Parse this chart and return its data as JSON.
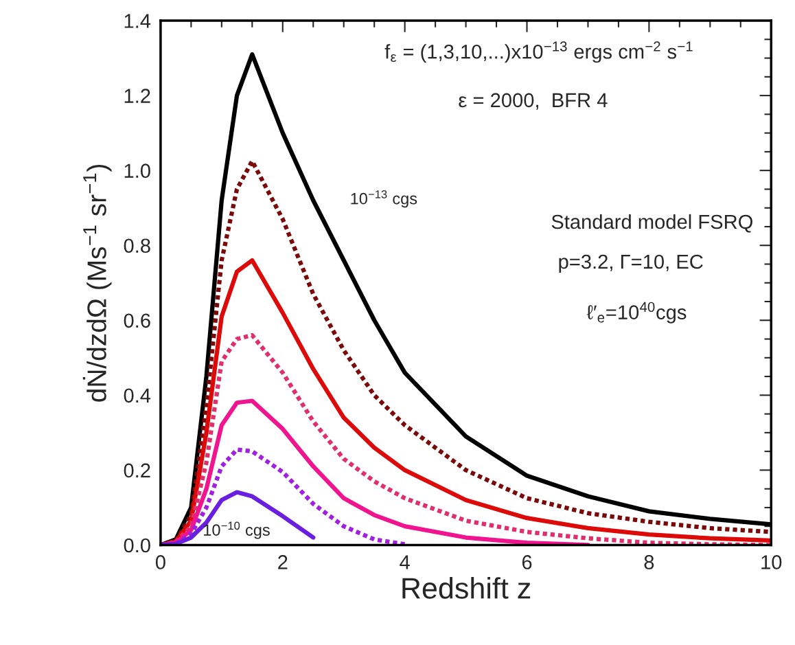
{
  "chart_data": {
    "type": "line",
    "xlabel": "Redshift z",
    "ylabel": "dṄ/dzdΩ (Ms$^{−1}$ sr$^{−1}$)",
    "x": [
      0,
      0.25,
      0.5,
      0.75,
      1,
      1.25,
      1.5,
      2,
      2.5,
      3,
      3.5,
      4,
      5,
      6,
      7,
      8,
      9,
      10
    ],
    "series": [
      {
        "color": "#000000",
        "line_style": "solid",
        "values": [
          0,
          0.015,
          0.1,
          0.45,
          0.92,
          1.2,
          1.31,
          1.1,
          0.92,
          0.76,
          0.6,
          0.46,
          0.29,
          0.185,
          0.13,
          0.09,
          0.07,
          0.055
        ]
      },
      {
        "color": "#7a0a0a",
        "line_style": "dotted",
        "values": [
          0,
          0.012,
          0.08,
          0.37,
          0.76,
          0.95,
          1.025,
          0.87,
          0.67,
          0.52,
          0.4,
          0.32,
          0.2,
          0.125,
          0.085,
          0.062,
          0.045,
          0.035
        ]
      },
      {
        "color": "#dd0a0a",
        "line_style": "solid",
        "values": [
          0,
          0.01,
          0.065,
          0.3,
          0.61,
          0.73,
          0.76,
          0.62,
          0.47,
          0.34,
          0.26,
          0.2,
          0.12,
          0.072,
          0.045,
          0.028,
          0.018,
          0.012
        ]
      },
      {
        "color": "#e0306a",
        "line_style": "dotted",
        "values": [
          0,
          0.008,
          0.05,
          0.22,
          0.49,
          0.55,
          0.56,
          0.46,
          0.33,
          0.23,
          0.17,
          0.125,
          0.065,
          0.035,
          0.018,
          0.006,
          0.002,
          0
        ]
      },
      {
        "color": "#f0158f",
        "line_style": "solid",
        "values": [
          0,
          0.006,
          0.04,
          0.15,
          0.32,
          0.38,
          0.385,
          0.31,
          0.21,
          0.125,
          0.08,
          0.05,
          0.02,
          0.006,
          0,
          null,
          null,
          null
        ]
      },
      {
        "color": "#a020e0",
        "line_style": "dotted",
        "values": [
          0,
          0.004,
          0.03,
          0.1,
          0.21,
          0.255,
          0.25,
          0.195,
          0.11,
          0.05,
          0.015,
          0.002,
          null,
          null,
          null,
          null,
          null,
          null
        ]
      },
      {
        "color": "#6a1ee0",
        "line_style": "solid",
        "values": [
          0,
          0.003,
          0.02,
          0.06,
          0.12,
          0.141,
          0.13,
          0.077,
          0.02,
          null,
          null,
          null,
          null,
          null,
          null,
          null,
          null,
          null
        ]
      }
    ],
    "xlim": [
      0,
      10
    ],
    "xticks": [
      0,
      2,
      4,
      6,
      8,
      10
    ],
    "ylim": [
      0,
      1.4
    ],
    "yticks": [
      {
        "value": 0,
        "label": "0.0"
      },
      {
        "value": 0.2,
        "label": "0.2"
      },
      {
        "value": 0.4,
        "label": "0.4"
      },
      {
        "value": 0.6,
        "label": "0.6"
      },
      {
        "value": 0.8,
        "label": "0.8"
      },
      {
        "value": 1.0,
        "label": "1.0"
      },
      {
        "value": 1.2,
        "label": "1.2"
      },
      {
        "value": 1.4,
        "label": "1.4"
      }
    ],
    "grid": false,
    "legend": false,
    "marker": "none",
    "annotations": [
      "f$_{ε}$ = (1,3,10,...)x10$^{−13}$ ergs cm$^{−2}$ s$^{−1}$",
      "ε = 2000,  BFR 4",
      "Standard model FSRQ",
      "p=3.2, Γ=10, EC",
      "ℓ′$_{e}$=10$^{40}$cgs",
      "10$^{−13}$ cgs",
      "10$^{−10}$ cgs"
    ]
  }
}
